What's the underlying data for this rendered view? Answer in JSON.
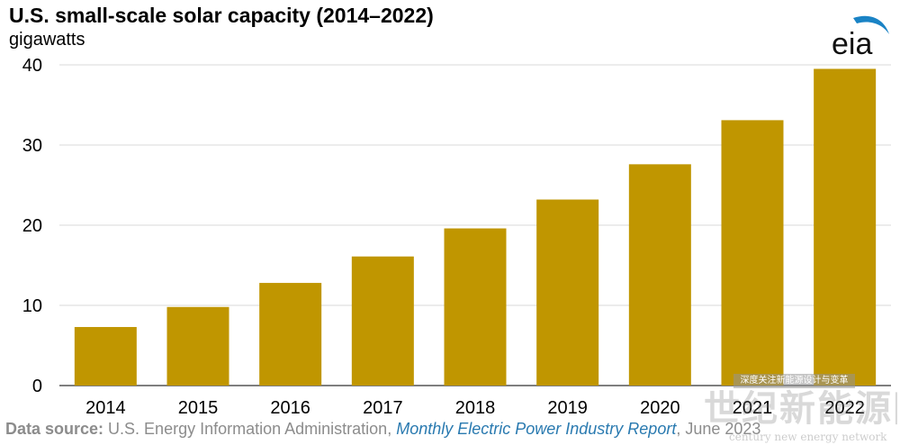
{
  "chart_data": {
    "type": "bar",
    "title": "U.S. small-scale solar capacity (2014–2022)",
    "subtitle": "gigawatts",
    "categories": [
      "2014",
      "2015",
      "2016",
      "2017",
      "2018",
      "2019",
      "2020",
      "2021",
      "2022"
    ],
    "values": [
      7.3,
      9.8,
      12.8,
      16.1,
      19.6,
      23.2,
      27.6,
      33.1,
      39.5
    ],
    "ylim": [
      0,
      40
    ],
    "yticks": [
      0,
      10,
      20,
      30,
      40
    ],
    "grid": true,
    "bar_color": "#c09600"
  },
  "logo": {
    "text": "eia",
    "swoosh_color": "#1a83c5"
  },
  "source": {
    "label": "Data source:",
    "text": " U.S. Energy Information Administration, ",
    "report": "Monthly Electric Power Industry Report",
    "date": ", June 2023"
  },
  "watermark": {
    "tag": "深度关注新能源设计与变革",
    "chinese": "世纪新能源网",
    "english": "century new energy network"
  }
}
